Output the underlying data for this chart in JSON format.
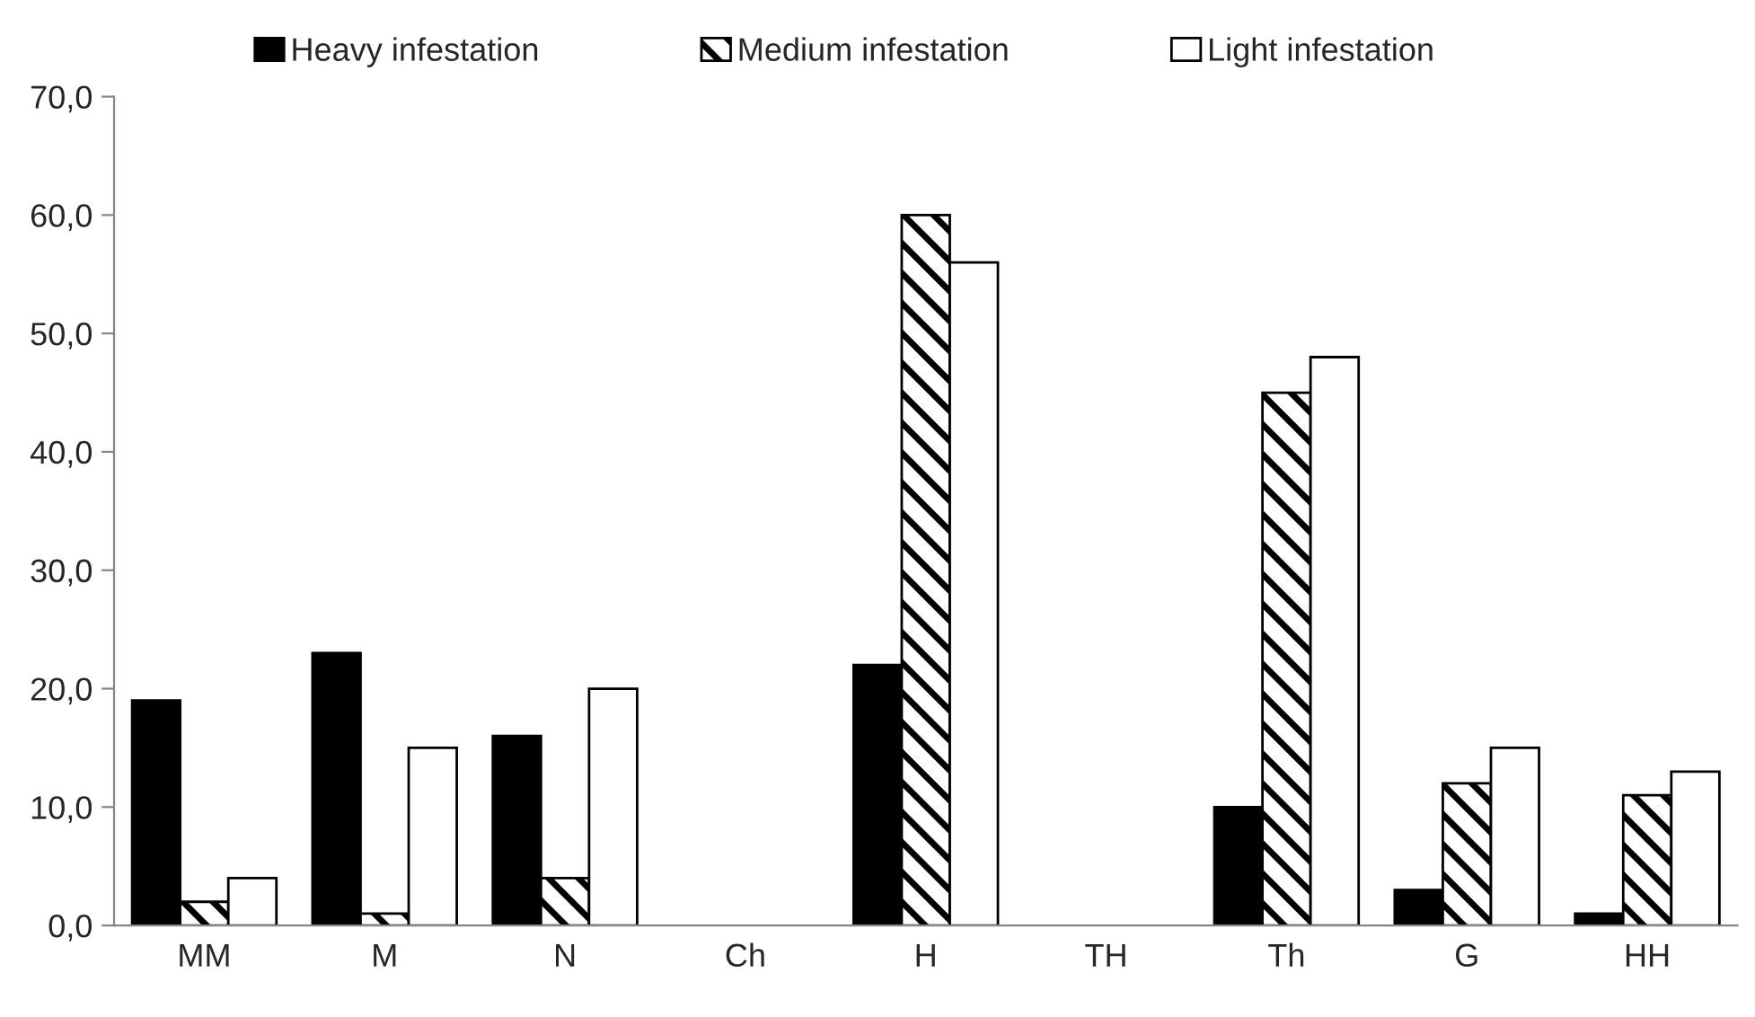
{
  "chart_data": {
    "type": "bar",
    "categories": [
      "MM",
      "M",
      "N",
      "Ch",
      "H",
      "TH",
      "Th",
      "G",
      "HH"
    ],
    "series": [
      {
        "name": "Heavy infestation",
        "color": "#000000",
        "values": [
          19,
          23,
          16,
          0,
          22,
          0,
          10,
          3,
          1
        ]
      },
      {
        "name": "Medium infestation",
        "color": "#000000",
        "values": [
          2,
          1,
          4,
          0,
          60,
          0,
          45,
          12,
          11
        ]
      },
      {
        "name": "Light infestation",
        "color": "#ffffff",
        "values": [
          4,
          15,
          20,
          0,
          56,
          0,
          48,
          15,
          13
        ]
      }
    ],
    "ylim": [
      0,
      70
    ],
    "yticks": [
      {
        "value": 0,
        "label": "0,0"
      },
      {
        "value": 10,
        "label": "10,0"
      },
      {
        "value": 20,
        "label": "20,0"
      },
      {
        "value": 30,
        "label": "30,0"
      },
      {
        "value": 40,
        "label": "40,0"
      },
      {
        "value": 50,
        "label": "50,0"
      },
      {
        "value": 60,
        "label": "60,0"
      },
      {
        "value": 70,
        "label": "70,0"
      }
    ],
    "grid": false,
    "legend": "top"
  }
}
